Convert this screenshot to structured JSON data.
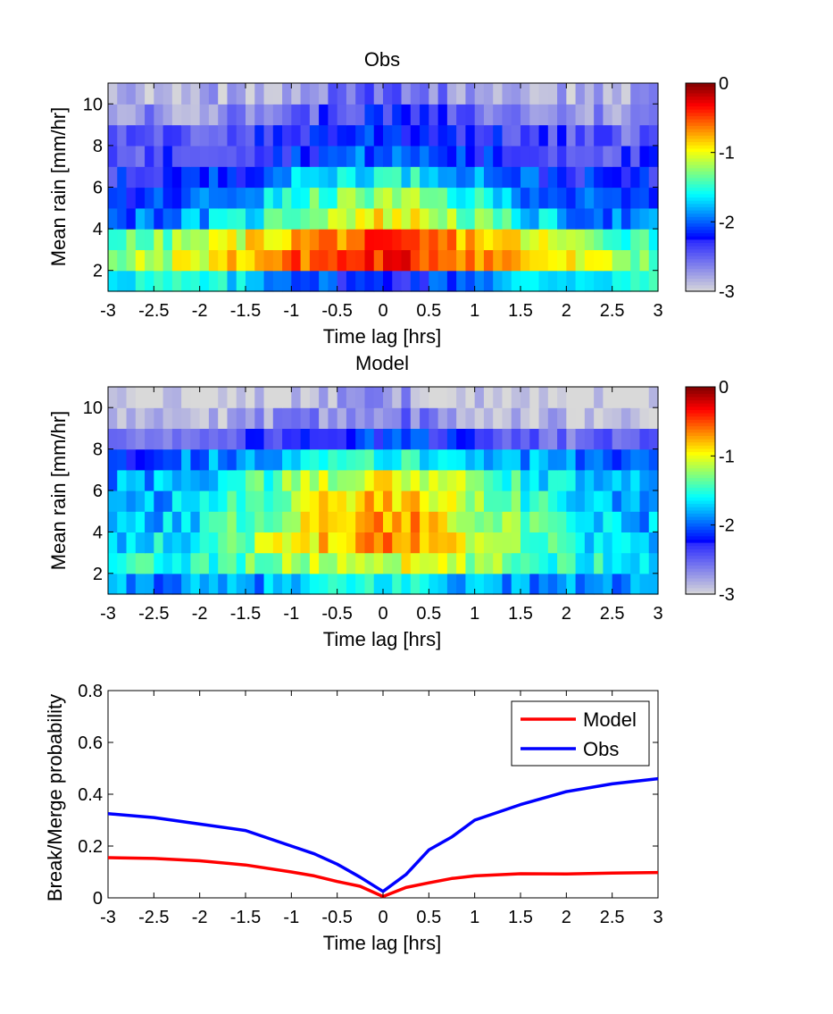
{
  "chart_data": [
    {
      "type": "heatmap",
      "title": "Obs",
      "xlabel": "Time lag [hrs]",
      "ylabel": "Mean rain [mm/hr]",
      "xlim": [
        -3,
        3
      ],
      "ylim": [
        1,
        11
      ],
      "xticks": [
        -3,
        -2.5,
        -2,
        -1.5,
        -1,
        -0.5,
        0,
        0.5,
        1,
        1.5,
        2,
        2.5,
        3
      ],
      "yticks": [
        2,
        4,
        6,
        8,
        10
      ],
      "colorbar": {
        "range": [
          -3,
          0
        ],
        "ticks": [
          0,
          -1,
          -2,
          -3
        ],
        "colormap": "jet-with-gray-low"
      },
      "rows_y_centers": [
        1.5,
        2.5,
        3.5,
        4.5,
        5.5,
        6.5,
        7.5,
        8.5,
        9.5,
        10.5
      ],
      "row_levels": [
        {
          "center": -2.2,
          "spread": 1.3,
          "peak": -1.55
        },
        {
          "center": -0.4,
          "spread": 2.3,
          "peak": -1.5
        },
        {
          "center": -0.55,
          "spread": 2.1,
          "peak": -1.6
        },
        {
          "center": -0.95,
          "spread": 1.5,
          "peak": -2.0
        },
        {
          "center": -1.25,
          "spread": 1.55,
          "peak": -2.2
        },
        {
          "center": -1.55,
          "spread": 1.5,
          "peak": -2.3
        },
        {
          "center": -2.0,
          "spread": 1.4,
          "peak": -2.4
        },
        {
          "center": -2.1,
          "spread": 1.4,
          "peak": -2.5
        },
        {
          "center": -2.3,
          "spread": 1.1,
          "peak": -2.7
        },
        {
          "center": -2.5,
          "spread": 0.9,
          "peak": -2.8
        }
      ]
    },
    {
      "type": "heatmap",
      "title": "Model",
      "xlabel": "Time lag [hrs]",
      "ylabel": "Mean rain [mm/hr]",
      "xlim": [
        -3,
        3
      ],
      "ylim": [
        1,
        11
      ],
      "xticks": [
        -3,
        -2.5,
        -2,
        -1.5,
        -1,
        -0.5,
        0,
        0.5,
        1,
        1.5,
        2,
        2.5,
        3
      ],
      "yticks": [
        2,
        4,
        6,
        8,
        10
      ],
      "colorbar": {
        "range": [
          -3,
          0
        ],
        "ticks": [
          0,
          -1,
          -2,
          -3
        ],
        "colormap": "jet-with-gray-low"
      },
      "rows_y_centers": [
        1.5,
        2.5,
        3.5,
        4.5,
        5.5,
        6.5,
        7.5,
        8.5,
        9.5,
        10.5
      ],
      "row_levels": [
        {
          "center": -1.55,
          "spread": 1.0,
          "peak": -1.9
        },
        {
          "center": -1.05,
          "spread": 1.6,
          "peak": -1.6
        },
        {
          "center": -0.65,
          "spread": 1.7,
          "peak": -1.8
        },
        {
          "center": -0.7,
          "spread": 1.6,
          "peak": -1.85
        },
        {
          "center": -0.8,
          "spread": 1.6,
          "peak": -1.9
        },
        {
          "center": -1.0,
          "spread": 1.6,
          "peak": -1.9
        },
        {
          "center": -1.55,
          "spread": 1.9,
          "peak": -2.1
        },
        {
          "center": -2.15,
          "spread": 1.7,
          "peak": -2.6
        },
        {
          "center": -2.55,
          "spread": 1.2,
          "peak": -2.9
        },
        {
          "center": -2.7,
          "spread": 0.6,
          "peak": -3.0
        }
      ]
    },
    {
      "type": "line",
      "title": "",
      "xlabel": "Time lag [hrs]",
      "ylabel": "Break/Merge probability",
      "xlim": [
        -3,
        3
      ],
      "ylim": [
        0,
        0.8
      ],
      "xticks": [
        -3,
        -2.5,
        -2,
        -1.5,
        -1,
        -0.5,
        0,
        0.5,
        1,
        1.5,
        2,
        2.5,
        3
      ],
      "yticks": [
        0,
        0.2,
        0.4,
        0.6,
        0.8
      ],
      "legend": "top-right",
      "series": [
        {
          "name": "Model",
          "color": "#ff0000",
          "x": [
            -3,
            -2.5,
            -2,
            -1.5,
            -1,
            -0.75,
            -0.5,
            -0.25,
            0,
            0.25,
            0.5,
            0.75,
            1,
            1.5,
            2,
            2.5,
            3
          ],
          "y": [
            0.155,
            0.152,
            0.143,
            0.127,
            0.1,
            0.085,
            0.063,
            0.045,
            0.005,
            0.04,
            0.058,
            0.075,
            0.085,
            0.093,
            0.092,
            0.096,
            0.098
          ]
        },
        {
          "name": "Obs",
          "color": "#0000ff",
          "x": [
            -3,
            -2.5,
            -2,
            -1.5,
            -1,
            -0.75,
            -0.5,
            -0.25,
            0,
            0.25,
            0.5,
            0.75,
            1,
            1.5,
            2,
            2.5,
            3
          ],
          "y": [
            0.325,
            0.31,
            0.285,
            0.26,
            0.2,
            0.17,
            0.13,
            0.08,
            0.025,
            0.09,
            0.185,
            0.235,
            0.3,
            0.36,
            0.41,
            0.44,
            0.46
          ]
        }
      ]
    }
  ]
}
